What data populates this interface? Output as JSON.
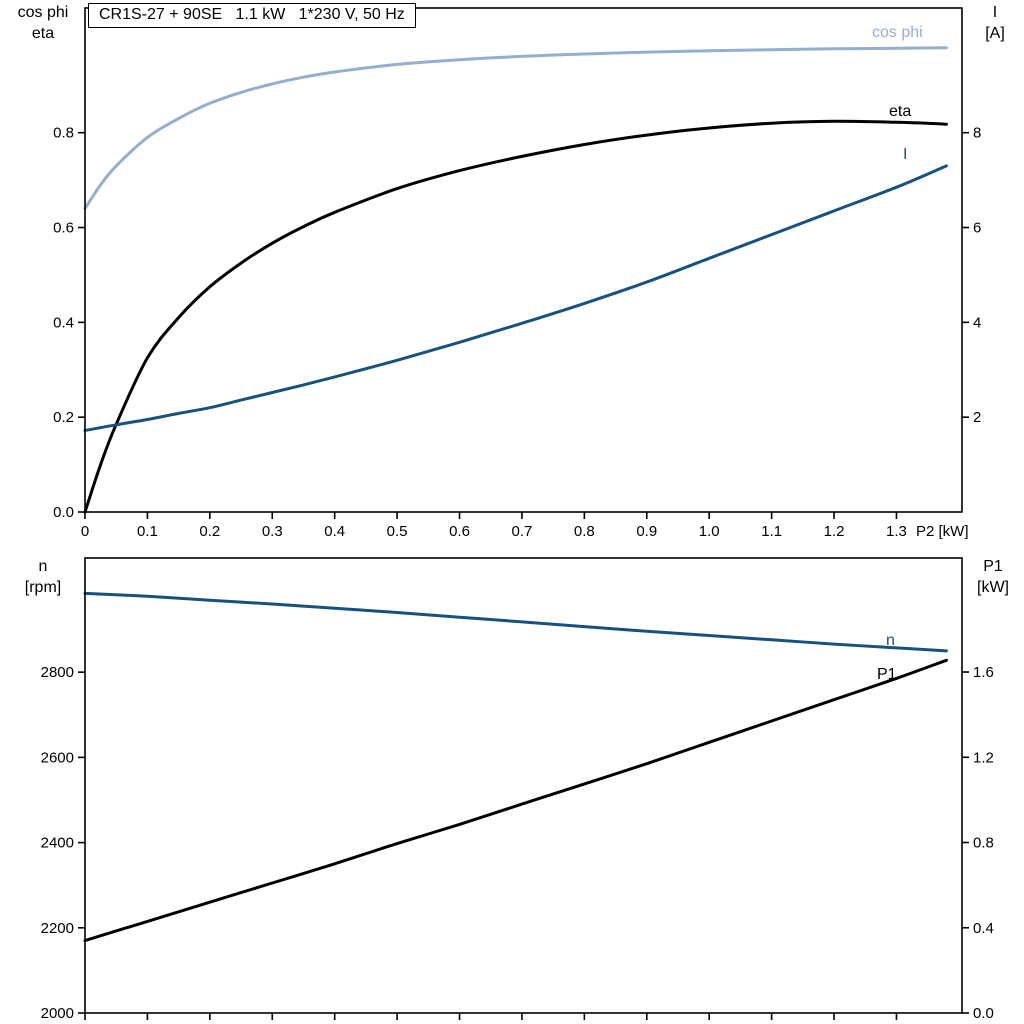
{
  "title": "CR1S-27 + 90SE   1.1 kW   1*230 V, 50 Hz",
  "colors": {
    "curve_light_blue": "#94afce",
    "curve_dark_blue": "#17527e",
    "curve_black": "#000000",
    "frame": "#000000",
    "background": "#ffffff"
  },
  "chart_data": {
    "type": "line",
    "charts": [
      {
        "id": "top",
        "corner_left": [
          "cos phi",
          "eta"
        ],
        "corner_right": [
          "I",
          "[A]"
        ],
        "x_axis": {
          "label": "P2 [kW]",
          "min": 0,
          "max": 1.405,
          "ticks": [
            0,
            0.1,
            0.2,
            0.3,
            0.4,
            0.5,
            0.6,
            0.7,
            0.8,
            0.9,
            1.0,
            1.1,
            1.2,
            1.3
          ],
          "tick_labels": [
            "0",
            "0.1",
            "0.2",
            "0.3",
            "0.4",
            "0.5",
            "0.6",
            "0.7",
            "0.8",
            "0.9",
            "1.0",
            "1.1",
            "1.2",
            "1.3"
          ],
          "show_labels": true
        },
        "y_left": {
          "min": 0,
          "max": 1.063,
          "ticks": [
            0.0,
            0.2,
            0.4,
            0.6,
            0.8
          ],
          "tick_labels": [
            "0.0",
            "0.2",
            "0.4",
            "0.6",
            "0.8"
          ]
        },
        "y_right": {
          "min": 0,
          "max": 10.63,
          "ticks": [
            2,
            4,
            6,
            8
          ],
          "tick_labels": [
            "2",
            "4",
            "6",
            "8"
          ]
        },
        "series": [
          {
            "name": "cos phi",
            "axis": "left",
            "color": "#94afce",
            "x": [
              0,
              0.025,
              0.05,
              0.1,
              0.15,
              0.2,
              0.25,
              0.3,
              0.35,
              0.4,
              0.5,
              0.6,
              0.7,
              0.8,
              0.9,
              1.0,
              1.1,
              1.2,
              1.3,
              1.38
            ],
            "y": [
              0.64,
              0.69,
              0.73,
              0.79,
              0.83,
              0.862,
              0.885,
              0.903,
              0.917,
              0.928,
              0.944,
              0.954,
              0.961,
              0.966,
              0.97,
              0.973,
              0.975,
              0.977,
              0.978,
              0.979
            ]
          },
          {
            "name": "eta",
            "axis": "left",
            "color": "#000000",
            "x": [
              0,
              0.025,
              0.05,
              0.1,
              0.15,
              0.2,
              0.25,
              0.3,
              0.35,
              0.4,
              0.5,
              0.6,
              0.7,
              0.8,
              0.9,
              1.0,
              1.1,
              1.2,
              1.3,
              1.38
            ],
            "y": [
              0,
              0.1,
              0.185,
              0.325,
              0.41,
              0.475,
              0.525,
              0.567,
              0.602,
              0.632,
              0.682,
              0.72,
              0.75,
              0.775,
              0.795,
              0.81,
              0.82,
              0.824,
              0.822,
              0.818
            ]
          },
          {
            "name": "I",
            "axis": "right",
            "color": "#17527e",
            "x": [
              0,
              0.025,
              0.05,
              0.1,
              0.15,
              0.2,
              0.25,
              0.3,
              0.35,
              0.4,
              0.5,
              0.6,
              0.7,
              0.8,
              0.9,
              1.0,
              1.1,
              1.2,
              1.3,
              1.38
            ],
            "y": [
              1.72,
              1.78,
              1.84,
              1.95,
              2.08,
              2.2,
              2.36,
              2.52,
              2.68,
              2.85,
              3.2,
              3.58,
              3.98,
              4.4,
              4.85,
              5.35,
              5.85,
              6.35,
              6.85,
              7.3
            ]
          }
        ]
      },
      {
        "id": "bottom",
        "corner_left": [
          "n",
          "[rpm]"
        ],
        "corner_right": [
          "P1",
          "[kW]"
        ],
        "x_axis": {
          "label": "",
          "min": 0,
          "max": 1.405,
          "ticks": [
            0,
            0.1,
            0.2,
            0.3,
            0.4,
            0.5,
            0.6,
            0.7,
            0.8,
            0.9,
            1.0,
            1.1,
            1.2,
            1.3
          ],
          "tick_labels": [],
          "show_labels": false
        },
        "y_left": {
          "min": 2000,
          "max": 3068,
          "ticks": [
            2000,
            2200,
            2400,
            2600,
            2800
          ],
          "tick_labels": [
            "2000",
            "2200",
            "2400",
            "2600",
            "2800"
          ]
        },
        "y_right": {
          "min": 0,
          "max": 2.135,
          "ticks": [
            0.0,
            0.4,
            0.8,
            1.2,
            1.6
          ],
          "tick_labels": [
            "0.0",
            "0.4",
            "0.8",
            "1.2",
            "1.6"
          ]
        },
        "series": [
          {
            "name": "n",
            "axis": "left",
            "color": "#17527e",
            "x": [
              0,
              0.1,
              0.2,
              0.3,
              0.4,
              0.5,
              0.6,
              0.7,
              0.8,
              0.9,
              1.0,
              1.1,
              1.2,
              1.3,
              1.38
            ],
            "y": [
              2985,
              2978,
              2969,
              2960,
              2950,
              2940,
              2929,
              2918,
              2907,
              2896,
              2886,
              2876,
              2866,
              2857,
              2850
            ]
          },
          {
            "name": "P1",
            "axis": "right",
            "color": "#000000",
            "x": [
              0,
              0.1,
              0.2,
              0.3,
              0.4,
              0.5,
              0.6,
              0.7,
              0.8,
              0.9,
              1.0,
              1.1,
              1.2,
              1.3,
              1.38
            ],
            "y": [
              0.34,
              0.43,
              0.52,
              0.61,
              0.7,
              0.795,
              0.885,
              0.98,
              1.075,
              1.17,
              1.27,
              1.37,
              1.47,
              1.57,
              1.655
            ]
          }
        ]
      }
    ]
  }
}
